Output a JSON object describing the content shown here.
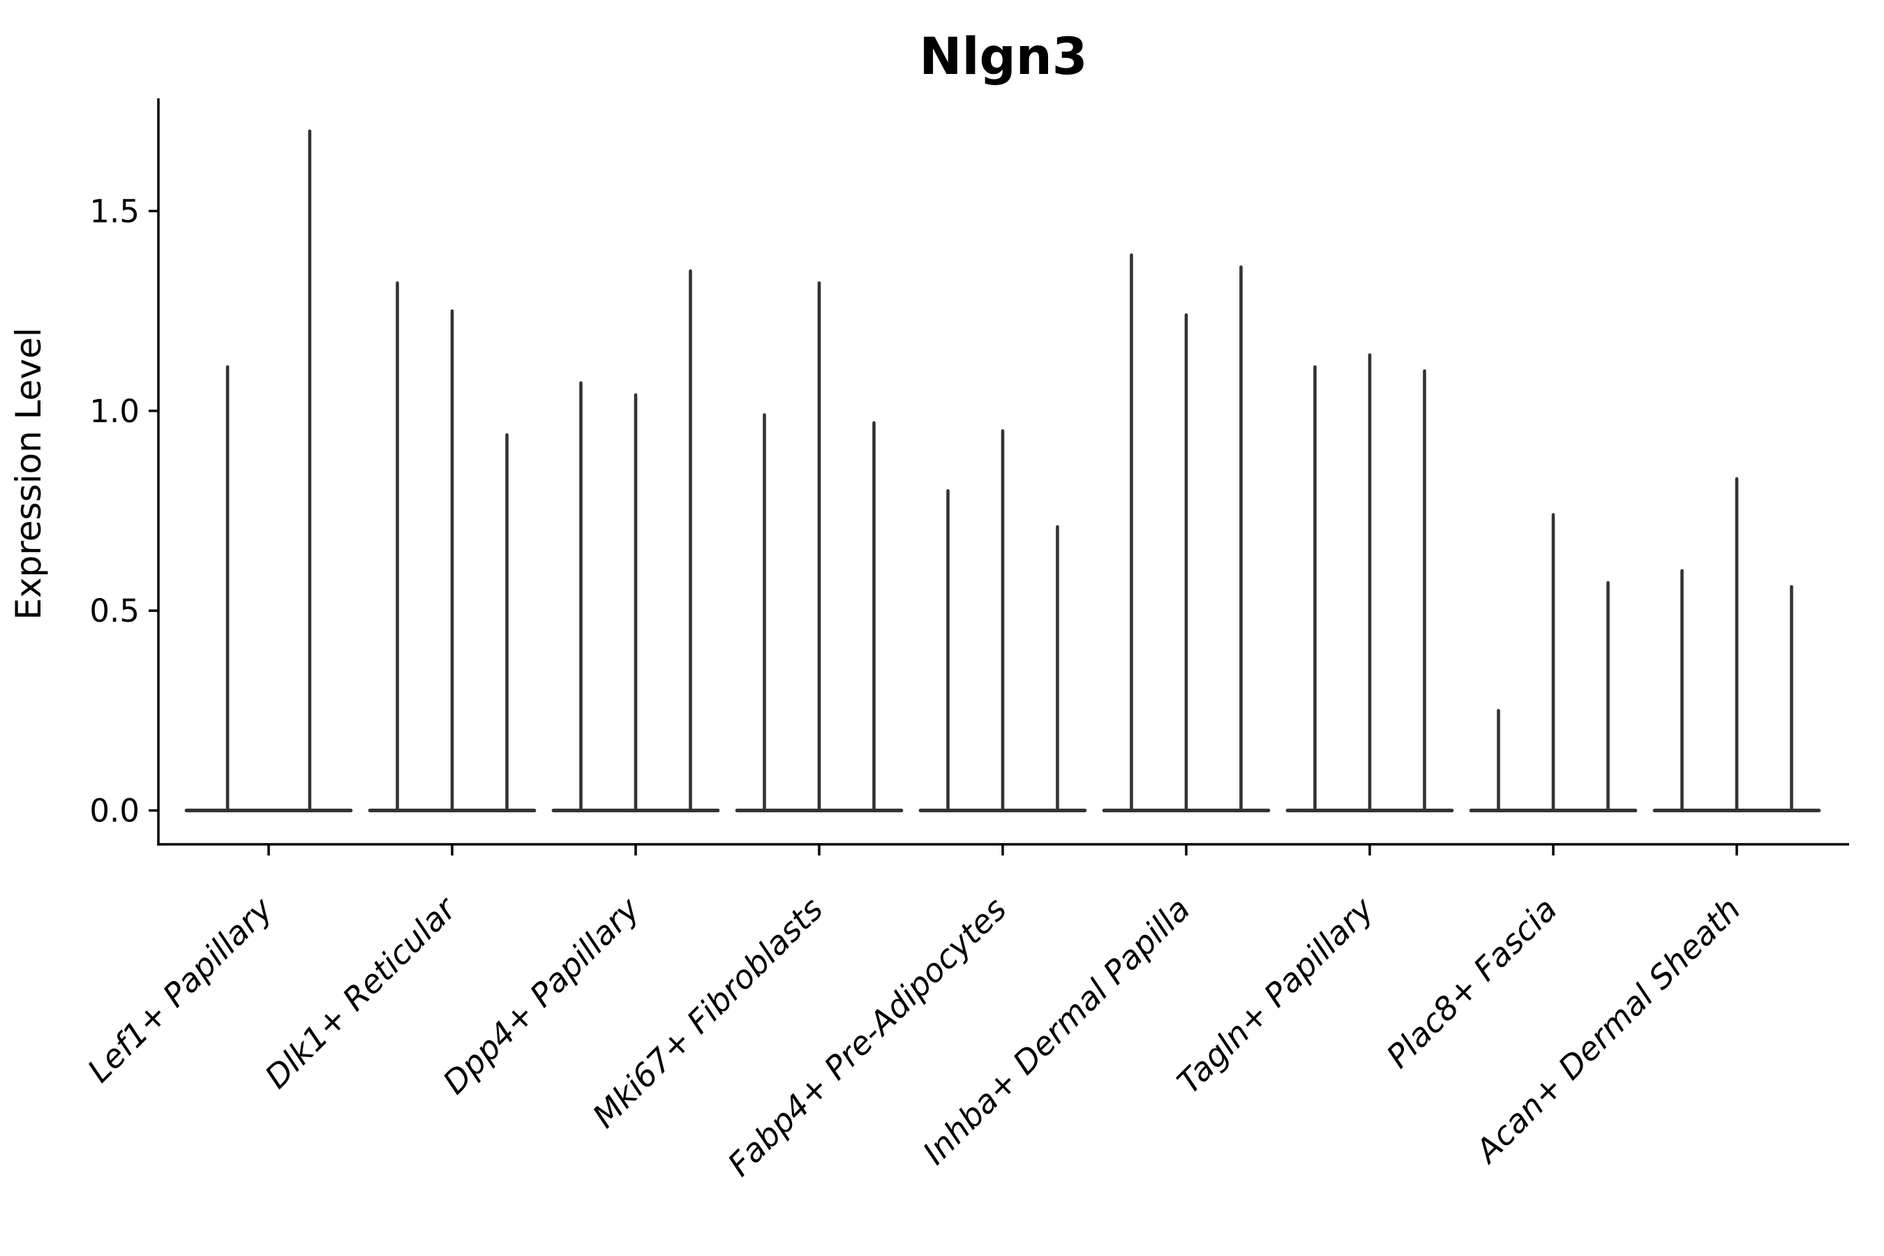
{
  "chart_data": {
    "type": "violin",
    "title": "Nlgn3",
    "xlabel": "",
    "ylabel": "Expression Level",
    "yticks": [
      0.0,
      0.5,
      1.0,
      1.5
    ],
    "ylim": [
      -0.08,
      1.78
    ],
    "grid": false,
    "legend": null,
    "x_tick_rotation": 45,
    "x_tick_style": "italic",
    "categories": [
      "Lef1+ Papillary",
      "Dlk1+ Reticular",
      "Dpp4+ Papillary",
      "Mki67+ Fibroblasts",
      "Fabp4+ Pre-Adipocytes",
      "Inhba+ Dermal Papilla",
      "Tagln+ Papillary",
      "Plac8+ Fascia",
      "Acan+ Dermal Sheath"
    ],
    "groups": [
      {
        "category": "Lef1+ Papillary",
        "violin_peaks": [
          1.11,
          1.7
        ]
      },
      {
        "category": "Dlk1+ Reticular",
        "violin_peaks": [
          1.32,
          1.25,
          0.94
        ]
      },
      {
        "category": "Dpp4+ Papillary",
        "violin_peaks": [
          1.07,
          1.04,
          1.35
        ]
      },
      {
        "category": "Mki67+ Fibroblasts",
        "violin_peaks": [
          0.99,
          1.32,
          0.97
        ]
      },
      {
        "category": "Fabp4+ Pre-Adipocytes",
        "violin_peaks": [
          0.8,
          0.95,
          0.71
        ]
      },
      {
        "category": "Inhba+ Dermal Papilla",
        "violin_peaks": [
          1.39,
          1.24,
          1.36
        ]
      },
      {
        "category": "Tagln+ Papillary",
        "violin_peaks": [
          1.11,
          1.14,
          1.1
        ]
      },
      {
        "category": "Plac8+ Fascia",
        "violin_peaks": [
          0.25,
          0.74,
          0.57
        ]
      },
      {
        "category": "Acan+ Dermal Sheath",
        "violin_peaks": [
          0.6,
          0.83,
          0.56
        ]
      }
    ],
    "colors": {
      "violin": "#333333",
      "axis": "#000000",
      "text": "#000000",
      "background": "#ffffff"
    }
  }
}
